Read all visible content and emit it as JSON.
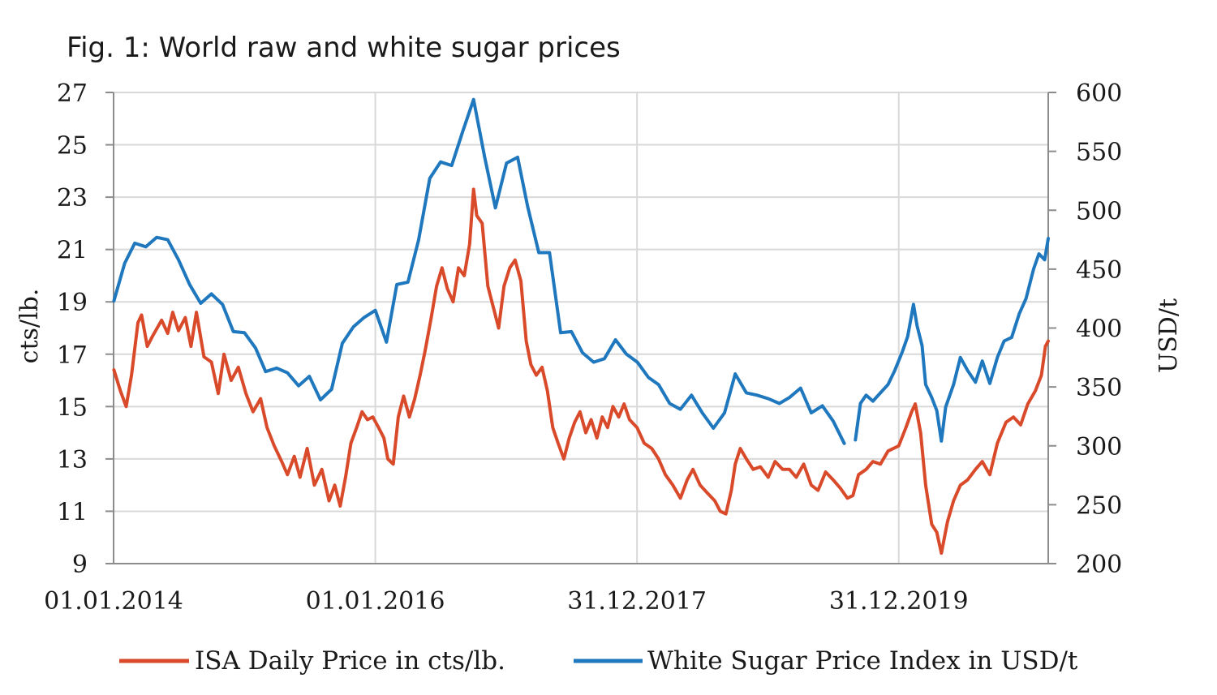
{
  "chart_data": {
    "type": "line",
    "title": "Fig. 1: World raw and white sugar prices",
    "x_ticks": [
      "01.01.2014",
      "01.01.2016",
      "31.12.2017",
      "31.12.2019"
    ],
    "x_range": [
      "2014-01-01",
      "2021-02-20"
    ],
    "grid": "vertical gridlines at x ticks, horizontal gridlines at left y ticks",
    "legend_position": "bottom",
    "y_left": {
      "label": "cts/lb.",
      "range": [
        9,
        27
      ],
      "ticks": [
        "27",
        "25",
        "23",
        "21",
        "19",
        "17",
        "15",
        "13",
        "11",
        "9"
      ]
    },
    "y_right": {
      "label": "USD/t",
      "range": [
        200,
        600
      ],
      "ticks": [
        "600",
        "550",
        "500",
        "450",
        "400",
        "350",
        "300",
        "250",
        "200"
      ]
    },
    "series": [
      {
        "name": "ISA Daily Price in cts/lb.",
        "axis": "left",
        "color": "#d94a2b",
        "points": [
          [
            "2014-01-02",
            16.4
          ],
          [
            "2014-01-20",
            15.6
          ],
          [
            "2014-02-05",
            15.0
          ],
          [
            "2014-02-20",
            16.2
          ],
          [
            "2014-03-10",
            18.2
          ],
          [
            "2014-03-20",
            18.5
          ],
          [
            "2014-04-05",
            17.3
          ],
          [
            "2014-04-20",
            17.7
          ],
          [
            "2014-05-15",
            18.3
          ],
          [
            "2014-06-01",
            17.8
          ],
          [
            "2014-06-15",
            18.6
          ],
          [
            "2014-07-01",
            17.9
          ],
          [
            "2014-07-20",
            18.4
          ],
          [
            "2014-08-05",
            17.3
          ],
          [
            "2014-08-20",
            18.6
          ],
          [
            "2014-09-10",
            16.9
          ],
          [
            "2014-10-01",
            16.7
          ],
          [
            "2014-10-20",
            15.5
          ],
          [
            "2014-11-05",
            17.0
          ],
          [
            "2014-11-25",
            16.0
          ],
          [
            "2014-12-15",
            16.5
          ],
          [
            "2015-01-05",
            15.5
          ],
          [
            "2015-01-25",
            14.8
          ],
          [
            "2015-02-15",
            15.3
          ],
          [
            "2015-03-05",
            14.2
          ],
          [
            "2015-03-25",
            13.5
          ],
          [
            "2015-04-15",
            12.9
          ],
          [
            "2015-05-01",
            12.4
          ],
          [
            "2015-05-20",
            13.1
          ],
          [
            "2015-06-05",
            12.3
          ],
          [
            "2015-06-25",
            13.4
          ],
          [
            "2015-07-15",
            12.0
          ],
          [
            "2015-08-05",
            12.6
          ],
          [
            "2015-08-25",
            11.4
          ],
          [
            "2015-09-10",
            12.0
          ],
          [
            "2015-09-25",
            11.2
          ],
          [
            "2015-10-10",
            12.3
          ],
          [
            "2015-10-25",
            13.6
          ],
          [
            "2015-11-10",
            14.2
          ],
          [
            "2015-11-25",
            14.8
          ],
          [
            "2015-12-10",
            14.5
          ],
          [
            "2015-12-25",
            14.6
          ],
          [
            "2016-01-10",
            14.2
          ],
          [
            "2016-01-25",
            13.8
          ],
          [
            "2016-02-05",
            13.0
          ],
          [
            "2016-02-20",
            12.8
          ],
          [
            "2016-03-05",
            14.6
          ],
          [
            "2016-03-20",
            15.4
          ],
          [
            "2016-04-05",
            14.6
          ],
          [
            "2016-04-20",
            15.3
          ],
          [
            "2016-05-05",
            16.2
          ],
          [
            "2016-05-20",
            17.2
          ],
          [
            "2016-06-05",
            18.4
          ],
          [
            "2016-06-20",
            19.6
          ],
          [
            "2016-07-05",
            20.3
          ],
          [
            "2016-07-20",
            19.5
          ],
          [
            "2016-08-05",
            19.0
          ],
          [
            "2016-08-20",
            20.3
          ],
          [
            "2016-09-05",
            20.0
          ],
          [
            "2016-09-20",
            21.2
          ],
          [
            "2016-10-01",
            23.3
          ],
          [
            "2016-10-10",
            22.3
          ],
          [
            "2016-10-25",
            22.0
          ],
          [
            "2016-11-10",
            19.6
          ],
          [
            "2016-11-25",
            18.8
          ],
          [
            "2016-12-10",
            18.0
          ],
          [
            "2016-12-25",
            19.6
          ],
          [
            "2017-01-10",
            20.3
          ],
          [
            "2017-01-25",
            20.6
          ],
          [
            "2017-02-10",
            19.8
          ],
          [
            "2017-02-25",
            17.5
          ],
          [
            "2017-03-10",
            16.6
          ],
          [
            "2017-03-25",
            16.2
          ],
          [
            "2017-04-10",
            16.5
          ],
          [
            "2017-04-25",
            15.6
          ],
          [
            "2017-05-10",
            14.2
          ],
          [
            "2017-05-25",
            13.6
          ],
          [
            "2017-06-10",
            13.0
          ],
          [
            "2017-06-25",
            13.8
          ],
          [
            "2017-07-10",
            14.4
          ],
          [
            "2017-07-25",
            14.8
          ],
          [
            "2017-08-10",
            14.0
          ],
          [
            "2017-08-25",
            14.5
          ],
          [
            "2017-09-10",
            13.8
          ],
          [
            "2017-09-25",
            14.6
          ],
          [
            "2017-10-10",
            14.2
          ],
          [
            "2017-10-25",
            15.0
          ],
          [
            "2017-11-10",
            14.6
          ],
          [
            "2017-11-25",
            15.1
          ],
          [
            "2017-12-10",
            14.5
          ],
          [
            "2017-12-31",
            14.2
          ],
          [
            "2018-01-20",
            13.6
          ],
          [
            "2018-02-10",
            13.4
          ],
          [
            "2018-03-01",
            13.0
          ],
          [
            "2018-03-20",
            12.4
          ],
          [
            "2018-04-10",
            12.0
          ],
          [
            "2018-05-01",
            11.5
          ],
          [
            "2018-05-20",
            12.2
          ],
          [
            "2018-06-05",
            12.6
          ],
          [
            "2018-06-25",
            12.0
          ],
          [
            "2018-07-15",
            11.7
          ],
          [
            "2018-08-05",
            11.4
          ],
          [
            "2018-08-20",
            11.0
          ],
          [
            "2018-09-05",
            10.9
          ],
          [
            "2018-09-20",
            11.8
          ],
          [
            "2018-10-01",
            12.8
          ],
          [
            "2018-10-15",
            13.4
          ],
          [
            "2018-11-01",
            13.0
          ],
          [
            "2018-11-20",
            12.6
          ],
          [
            "2018-12-10",
            12.7
          ],
          [
            "2019-01-01",
            12.3
          ],
          [
            "2019-01-20",
            12.9
          ],
          [
            "2019-02-10",
            12.6
          ],
          [
            "2019-03-01",
            12.6
          ],
          [
            "2019-03-20",
            12.3
          ],
          [
            "2019-04-10",
            12.8
          ],
          [
            "2019-05-01",
            12.0
          ],
          [
            "2019-05-20",
            11.8
          ],
          [
            "2019-06-10",
            12.5
          ],
          [
            "2019-07-01",
            12.2
          ],
          [
            "2019-07-20",
            11.9
          ],
          [
            "2019-08-10",
            11.5
          ],
          [
            "2019-08-25",
            11.6
          ],
          [
            "2019-09-10",
            12.4
          ],
          [
            "2019-10-01",
            12.6
          ],
          [
            "2019-10-20",
            12.9
          ],
          [
            "2019-11-10",
            12.8
          ],
          [
            "2019-12-01",
            13.3
          ],
          [
            "2019-12-31",
            13.5
          ],
          [
            "2020-01-20",
            14.2
          ],
          [
            "2020-02-05",
            14.8
          ],
          [
            "2020-02-15",
            15.1
          ],
          [
            "2020-03-01",
            14.0
          ],
          [
            "2020-03-15",
            12.0
          ],
          [
            "2020-04-01",
            10.5
          ],
          [
            "2020-04-15",
            10.2
          ],
          [
            "2020-04-28",
            9.4
          ],
          [
            "2020-05-15",
            10.6
          ],
          [
            "2020-06-01",
            11.4
          ],
          [
            "2020-06-20",
            12.0
          ],
          [
            "2020-07-10",
            12.2
          ],
          [
            "2020-08-01",
            12.6
          ],
          [
            "2020-08-20",
            12.9
          ],
          [
            "2020-09-10",
            12.4
          ],
          [
            "2020-10-01",
            13.6
          ],
          [
            "2020-10-25",
            14.4
          ],
          [
            "2020-11-15",
            14.6
          ],
          [
            "2020-12-05",
            14.3
          ],
          [
            "2020-12-25",
            15.1
          ],
          [
            "2021-01-15",
            15.6
          ],
          [
            "2021-02-01",
            16.2
          ],
          [
            "2021-02-12",
            17.3
          ],
          [
            "2021-02-20",
            17.5
          ]
        ]
      },
      {
        "name": "White Sugar Price Index in USD/t",
        "axis": "right",
        "color": "#1f78be",
        "points": [
          [
            "2014-01-02",
            423
          ],
          [
            "2014-02-01",
            455
          ],
          [
            "2014-03-01",
            472
          ],
          [
            "2014-04-01",
            469
          ],
          [
            "2014-05-01",
            477
          ],
          [
            "2014-06-01",
            475
          ],
          [
            "2014-07-01",
            458
          ],
          [
            "2014-08-01",
            437
          ],
          [
            "2014-09-01",
            421
          ],
          [
            "2014-10-01",
            429
          ],
          [
            "2014-11-01",
            420
          ],
          [
            "2014-12-01",
            397
          ],
          [
            "2015-01-01",
            396
          ],
          [
            "2015-02-01",
            383
          ],
          [
            "2015-03-01",
            363
          ],
          [
            "2015-04-01",
            366
          ],
          [
            "2015-05-01",
            362
          ],
          [
            "2015-06-01",
            351
          ],
          [
            "2015-07-01",
            359
          ],
          [
            "2015-08-01",
            339
          ],
          [
            "2015-09-01",
            348
          ],
          [
            "2015-10-01",
            387
          ],
          [
            "2015-11-01",
            401
          ],
          [
            "2015-12-01",
            409
          ],
          [
            "2016-01-01",
            415
          ],
          [
            "2016-02-01",
            388
          ],
          [
            "2016-03-01",
            437
          ],
          [
            "2016-04-01",
            439
          ],
          [
            "2016-05-01",
            475
          ],
          [
            "2016-06-01",
            527
          ],
          [
            "2016-07-01",
            541
          ],
          [
            "2016-08-01",
            538
          ],
          [
            "2016-09-01",
            567
          ],
          [
            "2016-10-01",
            594
          ],
          [
            "2016-11-01",
            545
          ],
          [
            "2016-12-01",
            502
          ],
          [
            "2017-01-01",
            540
          ],
          [
            "2017-02-01",
            545
          ],
          [
            "2017-03-01",
            503
          ],
          [
            "2017-04-01",
            464
          ],
          [
            "2017-05-01",
            464
          ],
          [
            "2017-06-01",
            396
          ],
          [
            "2017-07-01",
            397
          ],
          [
            "2017-08-01",
            379
          ],
          [
            "2017-09-01",
            371
          ],
          [
            "2017-10-01",
            374
          ],
          [
            "2017-11-01",
            390
          ],
          [
            "2017-12-01",
            378
          ],
          [
            "2018-01-01",
            371
          ],
          [
            "2018-02-01",
            358
          ],
          [
            "2018-03-01",
            352
          ],
          [
            "2018-04-01",
            336
          ],
          [
            "2018-05-01",
            331
          ],
          [
            "2018-06-01",
            343
          ],
          [
            "2018-07-01",
            328
          ],
          [
            "2018-08-01",
            315
          ],
          [
            "2018-09-01",
            328
          ],
          [
            "2018-10-01",
            361
          ],
          [
            "2018-11-01",
            345
          ],
          [
            "2018-12-01",
            343
          ],
          [
            "2019-01-01",
            340
          ],
          [
            "2019-02-01",
            336
          ],
          [
            "2019-03-01",
            341
          ],
          [
            "2019-04-01",
            349
          ],
          [
            "2019-05-01",
            328
          ],
          [
            "2019-06-01",
            334
          ],
          [
            "2019-07-01",
            321
          ],
          [
            "2019-08-01",
            302
          ],
          [
            null,
            null
          ],
          [
            "2019-09-01",
            305
          ],
          [
            "2019-09-15",
            336
          ],
          [
            "2019-10-01",
            343
          ],
          [
            "2019-10-20",
            338
          ],
          [
            "2019-11-10",
            345
          ],
          [
            "2019-12-01",
            352
          ],
          [
            "2019-12-20",
            364
          ],
          [
            "2020-01-10",
            380
          ],
          [
            "2020-01-25",
            393
          ],
          [
            "2020-02-10",
            420
          ],
          [
            "2020-02-20",
            402
          ],
          [
            "2020-03-05",
            385
          ],
          [
            "2020-03-15",
            352
          ],
          [
            "2020-04-01",
            341
          ],
          [
            "2020-04-15",
            330
          ],
          [
            "2020-04-28",
            304
          ],
          [
            "2020-05-10",
            333
          ],
          [
            "2020-06-01",
            352
          ],
          [
            "2020-06-20",
            375
          ],
          [
            "2020-07-10",
            364
          ],
          [
            "2020-08-01",
            354
          ],
          [
            "2020-08-20",
            372
          ],
          [
            "2020-09-10",
            353
          ],
          [
            "2020-10-01",
            375
          ],
          [
            "2020-10-20",
            389
          ],
          [
            "2020-11-10",
            392
          ],
          [
            "2020-12-01",
            412
          ],
          [
            "2020-12-20",
            425
          ],
          [
            "2021-01-10",
            450
          ],
          [
            "2021-01-25",
            463
          ],
          [
            "2021-02-10",
            458
          ],
          [
            "2021-02-20",
            476
          ]
        ]
      }
    ]
  }
}
